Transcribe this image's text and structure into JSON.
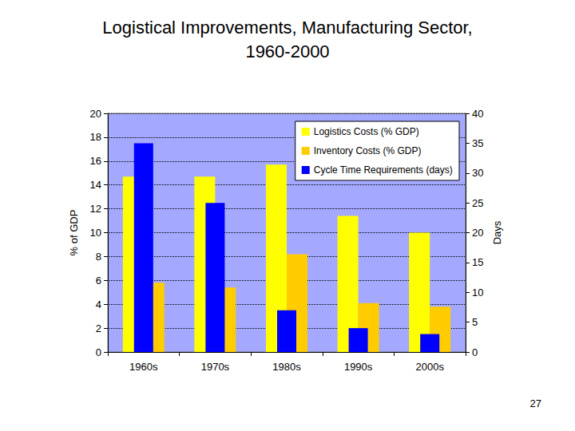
{
  "chart_data": {
    "type": "bar",
    "title": "Logistical Improvements, Manufacturing Sector,\n1960-2000",
    "categories": [
      "1960s",
      "1970s",
      "1980s",
      "1990s",
      "2000s"
    ],
    "series": [
      {
        "name": "Logistics Costs (% GDP)",
        "color": "#ffff00",
        "values": [
          14.7,
          14.7,
          15.7,
          11.4,
          10.0
        ]
      },
      {
        "name": "Inventory Costs (% GDP)",
        "color": "#ffcc00",
        "values": [
          5.8,
          5.4,
          8.2,
          4.1,
          3.8
        ]
      },
      {
        "name": "Cycle Time Requirements (days)",
        "color": "#0000ff",
        "values": [
          35,
          25,
          7,
          4,
          3
        ],
        "axis": "y2"
      }
    ],
    "ylabel": "% of GDP",
    "y2label": "Days",
    "ylim": [
      0,
      20
    ],
    "yticks": [
      0,
      2,
      4,
      6,
      8,
      10,
      12,
      14,
      16,
      18,
      20
    ],
    "y2lim": [
      0,
      40
    ],
    "y2ticks": [
      0,
      5,
      10,
      15,
      20,
      25,
      30,
      35,
      40
    ],
    "grid": true,
    "legend": "upper right",
    "annotations": [
      "27"
    ]
  }
}
